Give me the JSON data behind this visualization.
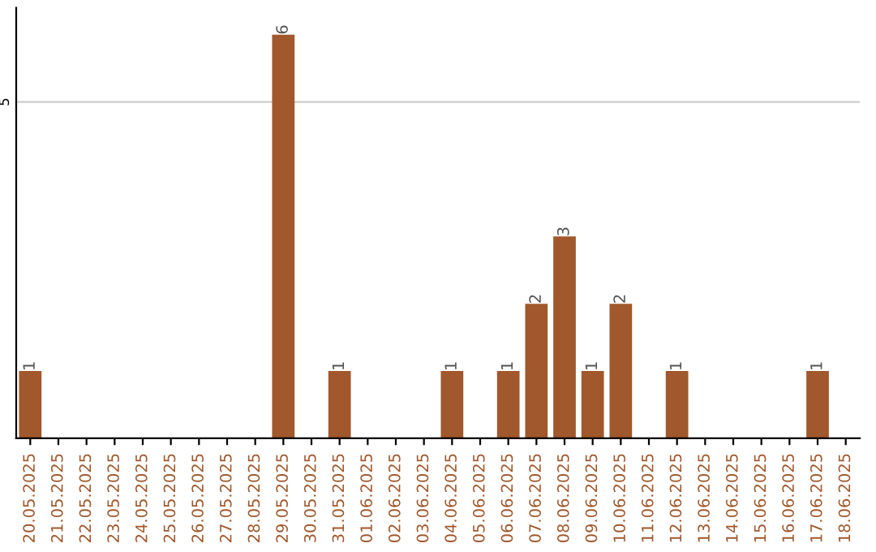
{
  "chart_data": {
    "type": "bar",
    "categories": [
      "20.05.2025",
      "21.05.2025",
      "22.05.2025",
      "23.05.2025",
      "24.05.2025",
      "25.05.2025",
      "26.05.2025",
      "27.05.2025",
      "28.05.2025",
      "29.05.2025",
      "30.05.2025",
      "31.05.2025",
      "01.06.2025",
      "02.06.2025",
      "03.06.2025",
      "04.06.2025",
      "05.06.2025",
      "06.06.2025",
      "07.06.2025",
      "08.06.2025",
      "09.06.2025",
      "10.06.2025",
      "11.06.2025",
      "12.06.2025",
      "13.06.2025",
      "14.06.2025",
      "15.06.2025",
      "16.06.2025",
      "17.06.2025",
      "18.06.2025"
    ],
    "values": [
      1,
      0,
      0,
      0,
      0,
      0,
      0,
      0,
      0,
      6,
      0,
      1,
      0,
      0,
      0,
      1,
      0,
      1,
      2,
      3,
      1,
      2,
      0,
      1,
      0,
      0,
      0,
      0,
      1,
      0
    ],
    "value_labels": [
      "1",
      null,
      null,
      null,
      null,
      null,
      null,
      null,
      null,
      "6",
      null,
      "1",
      null,
      null,
      null,
      "1",
      null,
      "1",
      "2",
      "3",
      "1",
      "2",
      null,
      "1",
      null,
      null,
      null,
      null,
      "1",
      null
    ],
    "color": "#a0582c",
    "ylim": [
      0,
      6.4
    ],
    "yticks": [
      5
    ],
    "grid": "y",
    "legend": false
  }
}
